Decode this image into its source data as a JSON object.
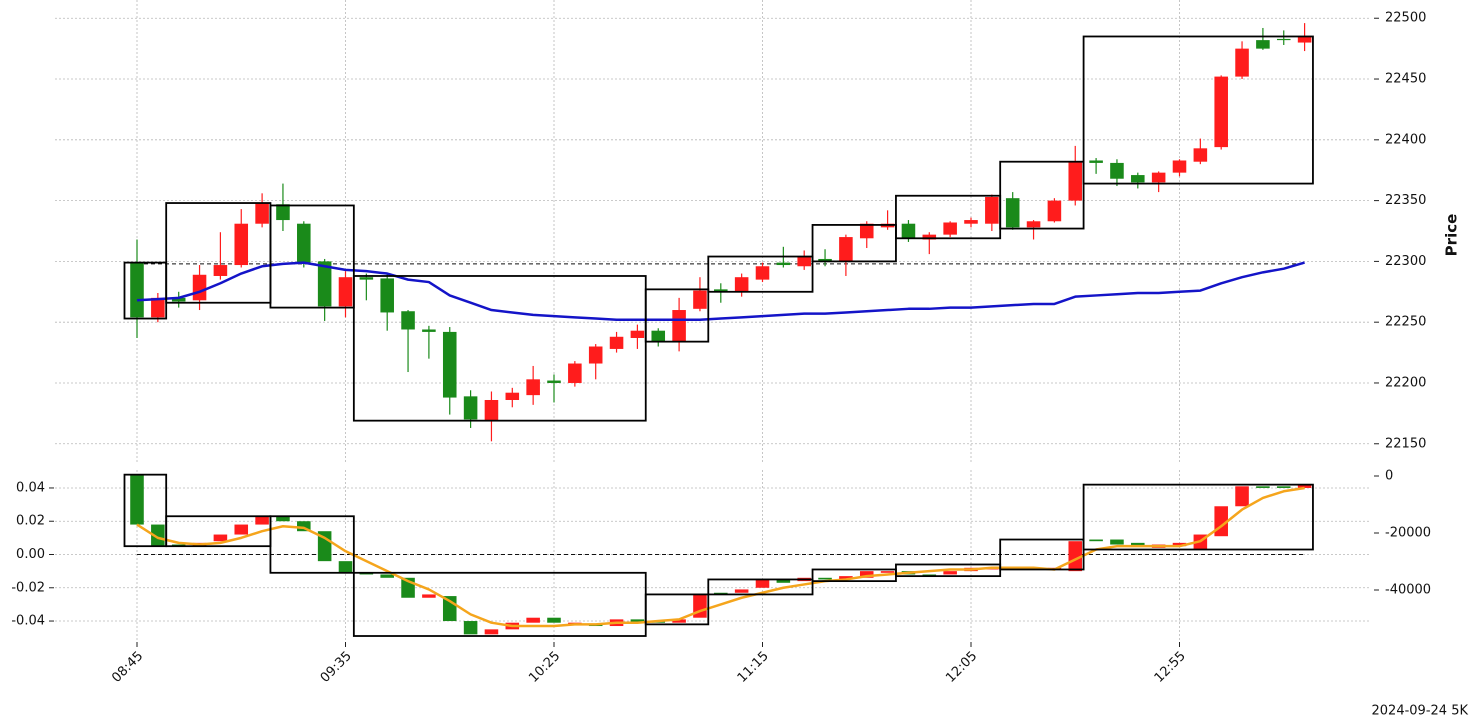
{
  "chart_data": [
    {
      "type": "candlestick",
      "ylabel": "Price",
      "open": [
        22299,
        22254,
        22270,
        22268,
        22288,
        22297,
        22331,
        22347,
        22331,
        22300,
        22263,
        22287,
        22286,
        22259,
        22244,
        22242,
        22189,
        22169,
        22186,
        22190,
        22202,
        22200,
        22216,
        22228,
        22237,
        22243,
        22234,
        22261,
        22277,
        22275,
        22285,
        22299,
        22296,
        22302,
        22300,
        22319,
        22328,
        22331,
        22318,
        22322,
        22331,
        22331,
        22352,
        22328,
        22333,
        22350,
        22383,
        22381,
        22371,
        22365,
        22373,
        22382,
        22394,
        22452,
        22482,
        22483,
        22480
      ],
      "high": [
        22318,
        22274,
        22275,
        22297,
        22324,
        22343,
        22356,
        22364,
        22333,
        22302,
        22292,
        22290,
        22290,
        22260,
        22247,
        22246,
        22194,
        22193,
        22196,
        22214,
        22207,
        22218,
        22232,
        22242,
        22248,
        22245,
        22270,
        22287,
        22282,
        22290,
        22299,
        22312,
        22309,
        22310,
        22322,
        22333,
        22342,
        22334,
        22324,
        22333,
        22336,
        22355,
        22357,
        22334,
        22352,
        22395,
        22385,
        22384,
        22373,
        22374,
        22384,
        22401,
        22453,
        22481,
        22492,
        22490,
        22496
      ],
      "low": [
        22237,
        22250,
        22262,
        22260,
        22285,
        22295,
        22328,
        22325,
        22295,
        22251,
        22254,
        22268,
        22243,
        22209,
        22220,
        22174,
        22163,
        22152,
        22180,
        22182,
        22184,
        22197,
        22203,
        22225,
        22228,
        22230,
        22226,
        22259,
        22266,
        22271,
        22283,
        22295,
        22293,
        22296,
        22288,
        22311,
        22326,
        22316,
        22306,
        22320,
        22328,
        22325,
        22326,
        22318,
        22332,
        22346,
        22372,
        22362,
        22360,
        22357,
        22370,
        22380,
        22392,
        22450,
        22474,
        22478,
        22473
      ],
      "close": [
        22254,
        22270,
        22267,
        22289,
        22297,
        22331,
        22348,
        22334,
        22299,
        22263,
        22287,
        22285,
        22258,
        22244,
        22242,
        22188,
        22170,
        22186,
        22192,
        22203,
        22200,
        22216,
        22230,
        22238,
        22243,
        22234,
        22260,
        22276,
        22275,
        22287,
        22296,
        22297,
        22304,
        22300,
        22320,
        22331,
        22331,
        22319,
        22322,
        22332,
        22334,
        22353,
        22328,
        22333,
        22350,
        22382,
        22381,
        22368,
        22365,
        22373,
        22383,
        22393,
        22452,
        22475,
        22475,
        22482,
        22485
      ],
      "up_color": "#ff1c1c",
      "down_color": "#1a8a1a",
      "lines": [
        {
          "color": "#1414c8",
          "values": [
            22268,
            22269,
            22270,
            22275,
            22282,
            22290,
            22296,
            22298,
            22299,
            22296,
            22293,
            22292,
            22290,
            22285,
            22283,
            22272,
            22266,
            22260,
            22258,
            22256,
            22255,
            22254,
            22253,
            22252,
            22252,
            22252,
            22252,
            22252,
            22253,
            22254,
            22255,
            22256,
            22257,
            22257,
            22258,
            22259,
            22260,
            22261,
            22261,
            22262,
            22262,
            22263,
            22264,
            22265,
            22265,
            22271,
            22272,
            22273,
            22274,
            22274,
            22275,
            22276,
            22282,
            22287,
            22291,
            22294,
            22299
          ]
        }
      ],
      "boxes": [
        {
          "start": 0,
          "end": 1,
          "low": 22253,
          "high": 22299
        },
        {
          "start": 2,
          "end": 6,
          "low": 22266,
          "high": 22348
        },
        {
          "start": 7,
          "end": 10,
          "low": 22262,
          "high": 22346
        },
        {
          "start": 11,
          "end": 24,
          "low": 22169,
          "high": 22288
        },
        {
          "start": 25,
          "end": 27,
          "low": 22234,
          "high": 22277
        },
        {
          "start": 28,
          "end": 32,
          "low": 22275,
          "high": 22304
        },
        {
          "start": 33,
          "end": 36,
          "low": 22300,
          "high": 22330
        },
        {
          "start": 37,
          "end": 41,
          "low": 22319,
          "high": 22354
        },
        {
          "start": 42,
          "end": 45,
          "low": 22327,
          "high": 22382
        },
        {
          "start": 46,
          "end": 56,
          "low": 22364,
          "high": 22485
        }
      ],
      "hline": 22298,
      "ylim": [
        22135,
        22515
      ],
      "yticks": [
        22150,
        22200,
        22250,
        22300,
        22350,
        22400,
        22450,
        22500
      ],
      "grid": true
    },
    {
      "type": "candlestick",
      "annotation": "2024-09-24 5K",
      "categories": [
        "08:45",
        null,
        null,
        null,
        null,
        null,
        null,
        null,
        null,
        null,
        "09:35",
        null,
        null,
        null,
        null,
        null,
        null,
        null,
        null,
        null,
        "10:25",
        null,
        null,
        null,
        null,
        null,
        null,
        null,
        null,
        null,
        "11:15",
        null,
        null,
        null,
        null,
        null,
        null,
        null,
        null,
        null,
        "12:05",
        null,
        null,
        null,
        null,
        null,
        null,
        null,
        null,
        null,
        "12:55",
        null,
        null,
        null,
        null,
        null,
        null
      ],
      "open": [
        0.048,
        0.018,
        0.006,
        0.005,
        0.008,
        0.012,
        0.018,
        0.023,
        0.02,
        0.014,
        -0.004,
        -0.011,
        -0.012,
        -0.014,
        -0.026,
        -0.025,
        -0.04,
        -0.048,
        -0.045,
        -0.041,
        -0.038,
        -0.042,
        -0.042,
        -0.043,
        -0.039,
        -0.04,
        -0.041,
        -0.038,
        -0.023,
        -0.023,
        -0.02,
        -0.015,
        -0.016,
        -0.014,
        -0.015,
        -0.014,
        -0.011,
        -0.01,
        -0.012,
        -0.012,
        -0.01,
        -0.009,
        -0.008,
        -0.009,
        -0.009,
        -0.01,
        0.009,
        0.009,
        0.007,
        0.004,
        0.005,
        0.003,
        0.011,
        0.029,
        0.041,
        0.041,
        0.04
      ],
      "close": [
        0.018,
        0.005,
        0.005,
        0.007,
        0.012,
        0.018,
        0.023,
        0.02,
        0.014,
        -0.004,
        -0.011,
        -0.012,
        -0.014,
        -0.026,
        -0.024,
        -0.04,
        -0.048,
        -0.045,
        -0.041,
        -0.038,
        -0.041,
        -0.041,
        -0.043,
        -0.039,
        -0.041,
        -0.041,
        -0.039,
        -0.024,
        -0.024,
        -0.021,
        -0.015,
        -0.017,
        -0.014,
        -0.015,
        -0.013,
        -0.01,
        -0.01,
        -0.012,
        -0.013,
        -0.01,
        -0.008,
        -0.008,
        -0.009,
        -0.008,
        -0.008,
        0.008,
        0.008,
        0.006,
        0.005,
        0.006,
        0.007,
        0.012,
        0.029,
        0.041,
        0.04,
        0.04,
        0.042
      ],
      "up_color": "#ff1c1c",
      "down_color": "#1a8a1a",
      "lines": [
        {
          "color": "#f5a51c",
          "values": [
            0.018,
            0.01,
            0.007,
            0.006,
            0.007,
            0.01,
            0.014,
            0.017,
            0.016,
            0.01,
            0.002,
            -0.004,
            -0.01,
            -0.016,
            -0.021,
            -0.028,
            -0.036,
            -0.041,
            -0.043,
            -0.043,
            -0.043,
            -0.042,
            -0.042,
            -0.041,
            -0.041,
            -0.04,
            -0.039,
            -0.034,
            -0.03,
            -0.026,
            -0.023,
            -0.02,
            -0.018,
            -0.016,
            -0.015,
            -0.013,
            -0.012,
            -0.011,
            -0.01,
            -0.009,
            -0.009,
            -0.008,
            -0.008,
            -0.008,
            -0.009,
            -0.003,
            0.003,
            0.005,
            0.005,
            0.005,
            0.005,
            0.008,
            0.017,
            0.027,
            0.034,
            0.038,
            0.04
          ]
        }
      ],
      "boxes": [
        {
          "start": 0,
          "end": 1,
          "low": 0.005,
          "high": 0.048
        },
        {
          "start": 2,
          "end": 6,
          "low": 0.005,
          "high": 0.023
        },
        {
          "start": 7,
          "end": 10,
          "low": -0.011,
          "high": 0.023
        },
        {
          "start": 11,
          "end": 24,
          "low": -0.049,
          "high": -0.011
        },
        {
          "start": 25,
          "end": 27,
          "low": -0.042,
          "high": -0.024
        },
        {
          "start": 28,
          "end": 32,
          "low": -0.024,
          "high": -0.015
        },
        {
          "start": 33,
          "end": 36,
          "low": -0.016,
          "high": -0.009
        },
        {
          "start": 37,
          "end": 41,
          "low": -0.013,
          "high": -0.006
        },
        {
          "start": 42,
          "end": 45,
          "low": -0.009,
          "high": 0.009
        },
        {
          "start": 46,
          "end": 56,
          "low": 0.003,
          "high": 0.042
        }
      ],
      "hline": 0,
      "ylim": [
        -0.0514,
        0.0508
      ],
      "yticks": [
        0.04,
        0.02,
        {
          "value": 0,
          "label": "0.00"
        },
        -0.02,
        -0.04
      ],
      "y2lim": [
        -57544,
        2105
      ],
      "y2ticks": [
        0,
        -20000,
        -40000
      ],
      "grid": true
    }
  ]
}
